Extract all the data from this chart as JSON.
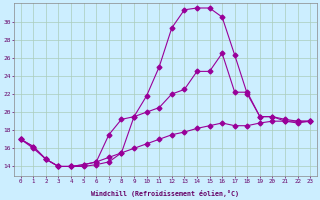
{
  "xlabel": "Windchill (Refroidissement éolien,°C)",
  "bg_color": "#cceeff",
  "line_color": "#990099",
  "grid_color": "#aaccbb",
  "xlim": [
    -0.5,
    23.5
  ],
  "ylim": [
    13,
    32
  ],
  "yticks": [
    14,
    16,
    18,
    20,
    22,
    24,
    26,
    28,
    30
  ],
  "xticks": [
    0,
    1,
    2,
    3,
    4,
    5,
    6,
    7,
    8,
    9,
    10,
    11,
    12,
    13,
    14,
    15,
    16,
    17,
    18,
    19,
    20,
    21,
    22,
    23
  ],
  "line1_x": [
    0,
    1,
    2,
    3,
    4,
    5,
    6,
    7,
    8,
    9,
    10,
    11,
    12,
    13,
    14,
    15,
    16,
    17,
    18,
    19,
    20,
    21,
    22,
    23
  ],
  "line1_y": [
    17.0,
    16.2,
    14.8,
    14.0,
    14.0,
    14.0,
    14.2,
    14.5,
    15.5,
    19.5,
    21.8,
    25.0,
    29.3,
    31.3,
    31.5,
    31.5,
    30.5,
    26.3,
    22.0,
    19.5,
    19.5,
    19.0,
    19.0,
    19.0
  ],
  "line2_x": [
    0,
    1,
    2,
    3,
    4,
    5,
    6,
    7,
    8,
    9,
    10,
    11,
    12,
    13,
    14,
    15,
    16,
    17,
    18,
    19,
    20,
    21,
    22,
    23
  ],
  "line2_y": [
    17.0,
    16.2,
    14.8,
    14.0,
    14.0,
    14.2,
    14.5,
    17.5,
    19.2,
    19.5,
    20.0,
    20.5,
    22.0,
    22.5,
    24.5,
    24.5,
    26.5,
    22.2,
    22.2,
    19.5,
    19.5,
    19.2,
    19.0,
    19.0
  ],
  "line3_x": [
    0,
    1,
    2,
    3,
    4,
    5,
    6,
    7,
    8,
    9,
    10,
    11,
    12,
    13,
    14,
    15,
    16,
    17,
    18,
    19,
    20,
    21,
    22,
    23
  ],
  "line3_y": [
    17.0,
    16.0,
    14.8,
    14.0,
    14.0,
    14.2,
    14.5,
    15.0,
    15.5,
    16.0,
    16.5,
    17.0,
    17.5,
    17.8,
    18.2,
    18.5,
    18.8,
    18.5,
    18.5,
    18.8,
    19.0,
    19.0,
    18.8,
    19.0
  ]
}
